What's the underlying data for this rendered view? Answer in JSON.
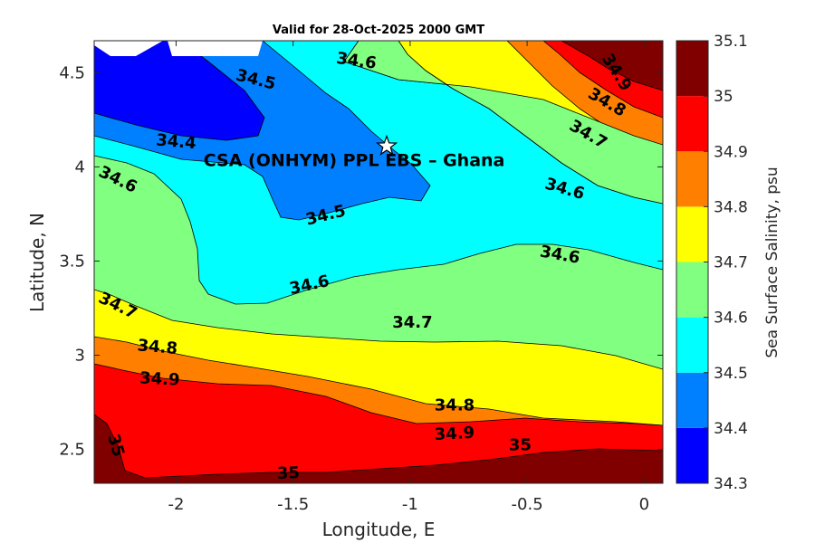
{
  "chart_data": {
    "type": "contour",
    "title": "Valid for 28-Oct-2025 2000 GMT",
    "xlabel": "Longitude, E",
    "ylabel": "Latitude, N",
    "xlim": [
      -2.35,
      0.08
    ],
    "ylim": [
      2.32,
      4.67
    ],
    "xticks": [
      -2,
      -1.5,
      -1,
      -0.5,
      0
    ],
    "xtick_labels": [
      "-2",
      "-1.5",
      "-1",
      "-0.5",
      "0"
    ],
    "yticks": [
      2.5,
      3,
      3.5,
      4,
      4.5
    ],
    "ytick_labels": [
      "2.5",
      "3",
      "3.5",
      "4",
      "4.5"
    ],
    "colorbar": {
      "label": "Sea Surface Salinity, psu",
      "levels": [
        34.3,
        34.4,
        34.5,
        34.6,
        34.7,
        34.8,
        34.9,
        35,
        35.1
      ],
      "level_labels": [
        "34.3",
        "34.4",
        "34.5",
        "34.6",
        "34.7",
        "34.8",
        "34.9",
        "35",
        "35.1"
      ],
      "colors": [
        "#0000ff",
        "#0080ff",
        "#00ffff",
        "#80ff80",
        "#ffff00",
        "#ff8000",
        "#ff0000",
        "#800000"
      ]
    },
    "contour_labels": [
      {
        "text": "34.6",
        "x": -1.23,
        "y": 4.56,
        "angle": 8
      },
      {
        "text": "34.5",
        "x": -1.66,
        "y": 4.46,
        "angle": 14
      },
      {
        "text": "34.4",
        "x": -2.0,
        "y": 4.13,
        "angle": 5
      },
      {
        "text": "34.6",
        "x": -2.25,
        "y": 3.93,
        "angle": 26
      },
      {
        "text": "34.5",
        "x": -1.36,
        "y": 3.74,
        "angle": -14
      },
      {
        "text": "34.6",
        "x": -1.43,
        "y": 3.37,
        "angle": -12
      },
      {
        "text": "34.7",
        "x": -2.25,
        "y": 3.26,
        "angle": 26
      },
      {
        "text": "34.7",
        "x": -0.99,
        "y": 3.17,
        "angle": 0
      },
      {
        "text": "34.8",
        "x": -2.08,
        "y": 3.04,
        "angle": 5
      },
      {
        "text": "34.9",
        "x": -2.07,
        "y": 2.87,
        "angle": 3
      },
      {
        "text": "34.8",
        "x": -0.81,
        "y": 2.73,
        "angle": 0
      },
      {
        "text": "34.9",
        "x": -0.81,
        "y": 2.58,
        "angle": -3
      },
      {
        "text": "35",
        "x": -2.26,
        "y": 2.52,
        "angle": 74
      },
      {
        "text": "35",
        "x": -1.52,
        "y": 2.37,
        "angle": -2
      },
      {
        "text": "35",
        "x": -0.53,
        "y": 2.52,
        "angle": 0
      },
      {
        "text": "34.9",
        "x": -0.12,
        "y": 4.5,
        "angle": 58
      },
      {
        "text": "34.8",
        "x": -0.16,
        "y": 4.34,
        "angle": 30
      },
      {
        "text": "34.7",
        "x": -0.24,
        "y": 4.17,
        "angle": 30
      },
      {
        "text": "34.6",
        "x": -0.34,
        "y": 3.88,
        "angle": 16
      },
      {
        "text": "34.6",
        "x": -0.36,
        "y": 3.53,
        "angle": 10
      }
    ],
    "station": {
      "label": "CSA (ONHYM) PPL EBS  – Ghana",
      "marker": "star",
      "lon": -1.1,
      "lat": 4.11
    }
  }
}
